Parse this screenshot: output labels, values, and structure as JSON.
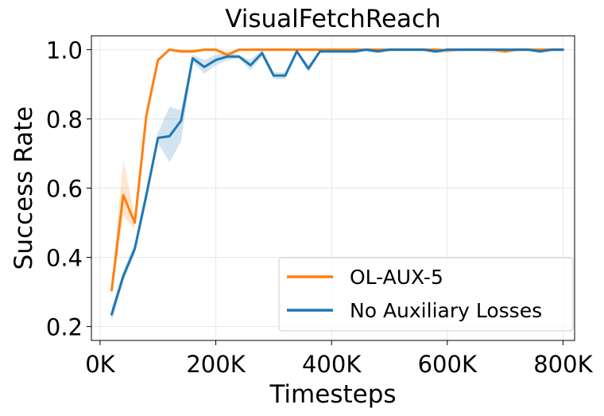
{
  "chart_data": {
    "type": "line",
    "title": "VisualFetchReach",
    "xlabel": "Timesteps",
    "ylabel": "Success Rate",
    "xlim": [
      -15000,
      820000
    ],
    "ylim": [
      0.16,
      1.04
    ],
    "xticks": [
      0,
      200000,
      400000,
      600000,
      800000
    ],
    "xtick_labels": [
      "0K",
      "200K",
      "400K",
      "600K",
      "800K"
    ],
    "yticks": [
      0.2,
      0.4,
      0.6,
      0.8,
      1.0
    ],
    "ytick_labels": [
      "0.2",
      "0.4",
      "0.6",
      "0.8",
      "1.0"
    ],
    "grid": true,
    "legend_position": "lower-right",
    "series": [
      {
        "name": "OL-AUX-5",
        "color": "#ff7f0e",
        "x": [
          20000,
          40000,
          60000,
          80000,
          100000,
          120000,
          140000,
          160000,
          180000,
          200000,
          220000,
          240000,
          260000,
          280000,
          300000,
          320000,
          340000,
          360000,
          380000,
          400000,
          420000,
          440000,
          460000,
          480000,
          500000,
          520000,
          540000,
          560000,
          580000,
          600000,
          620000,
          640000,
          660000,
          680000,
          700000,
          720000,
          740000,
          760000,
          780000,
          800000
        ],
        "y": [
          0.305,
          0.58,
          0.5,
          0.81,
          0.97,
          1.0,
          0.995,
          0.995,
          1.0,
          1.0,
          0.985,
          1.0,
          1.0,
          1.0,
          1.0,
          1.0,
          1.0,
          1.0,
          1.0,
          1.0,
          1.0,
          1.0,
          1.0,
          1.0,
          1.0,
          1.0,
          1.0,
          1.0,
          1.0,
          0.998,
          1.0,
          1.0,
          1.0,
          1.0,
          0.995,
          1.0,
          1.0,
          1.0,
          1.0,
          1.0
        ],
        "y_lower": [
          0.29,
          0.52,
          0.48,
          0.8,
          0.965,
          0.995,
          0.99,
          0.99,
          0.995,
          0.995,
          0.975,
          0.995,
          0.995,
          0.995,
          0.995,
          0.995,
          0.995,
          0.995,
          0.995,
          0.995,
          0.995,
          0.995,
          0.995,
          0.995,
          0.995,
          0.995,
          0.995,
          0.995,
          0.99,
          0.99,
          0.995,
          0.995,
          0.995,
          0.99,
          0.99,
          0.995,
          0.995,
          0.995,
          0.995,
          0.995
        ],
        "y_upper": [
          0.32,
          0.68,
          0.52,
          0.82,
          0.975,
          1.0,
          1.0,
          1.0,
          1.0,
          1.0,
          0.995,
          1.0,
          1.0,
          1.0,
          1.0,
          1.0,
          1.0,
          1.0,
          1.0,
          1.0,
          1.0,
          1.0,
          1.0,
          1.0,
          1.0,
          1.0,
          1.0,
          1.0,
          1.0,
          1.0,
          1.0,
          1.0,
          1.0,
          1.0,
          1.0,
          1.0,
          1.0,
          1.0,
          1.0,
          1.0
        ]
      },
      {
        "name": "No Auxiliary Losses",
        "color": "#1f77b4",
        "x": [
          20000,
          40000,
          60000,
          80000,
          100000,
          120000,
          140000,
          160000,
          180000,
          200000,
          220000,
          240000,
          260000,
          280000,
          300000,
          320000,
          340000,
          360000,
          380000,
          400000,
          420000,
          440000,
          460000,
          480000,
          500000,
          520000,
          540000,
          560000,
          580000,
          600000,
          620000,
          640000,
          660000,
          680000,
          700000,
          720000,
          740000,
          760000,
          780000,
          800000
        ],
        "y": [
          0.235,
          0.345,
          0.425,
          0.58,
          0.745,
          0.75,
          0.795,
          0.975,
          0.95,
          0.97,
          0.98,
          0.98,
          0.955,
          0.99,
          0.925,
          0.925,
          0.995,
          0.945,
          0.995,
          0.995,
          0.995,
          0.995,
          1.0,
          0.995,
          1.0,
          1.0,
          1.0,
          1.0,
          0.995,
          1.0,
          1.0,
          1.0,
          1.0,
          1.0,
          1.0,
          1.0,
          1.0,
          0.995,
          1.0,
          1.0
        ],
        "y_lower": [
          0.215,
          0.33,
          0.41,
          0.56,
          0.73,
          0.675,
          0.735,
          0.965,
          0.93,
          0.955,
          0.97,
          0.975,
          0.94,
          0.98,
          0.915,
          0.915,
          0.99,
          0.935,
          0.99,
          0.99,
          0.99,
          0.99,
          0.995,
          0.99,
          0.995,
          0.995,
          0.995,
          0.995,
          0.99,
          0.995,
          0.995,
          0.995,
          0.995,
          0.995,
          0.995,
          0.995,
          0.995,
          0.99,
          0.995,
          0.995
        ],
        "y_upper": [
          0.255,
          0.36,
          0.44,
          0.6,
          0.76,
          0.835,
          0.825,
          0.985,
          0.97,
          0.985,
          0.99,
          0.985,
          0.97,
          1.0,
          0.935,
          0.935,
          1.0,
          0.955,
          1.0,
          1.0,
          1.0,
          1.0,
          1.0,
          1.0,
          1.0,
          1.0,
          1.0,
          1.0,
          1.0,
          1.0,
          1.0,
          1.0,
          1.0,
          1.0,
          1.0,
          1.0,
          1.0,
          1.0,
          1.0,
          1.0
        ]
      }
    ]
  }
}
